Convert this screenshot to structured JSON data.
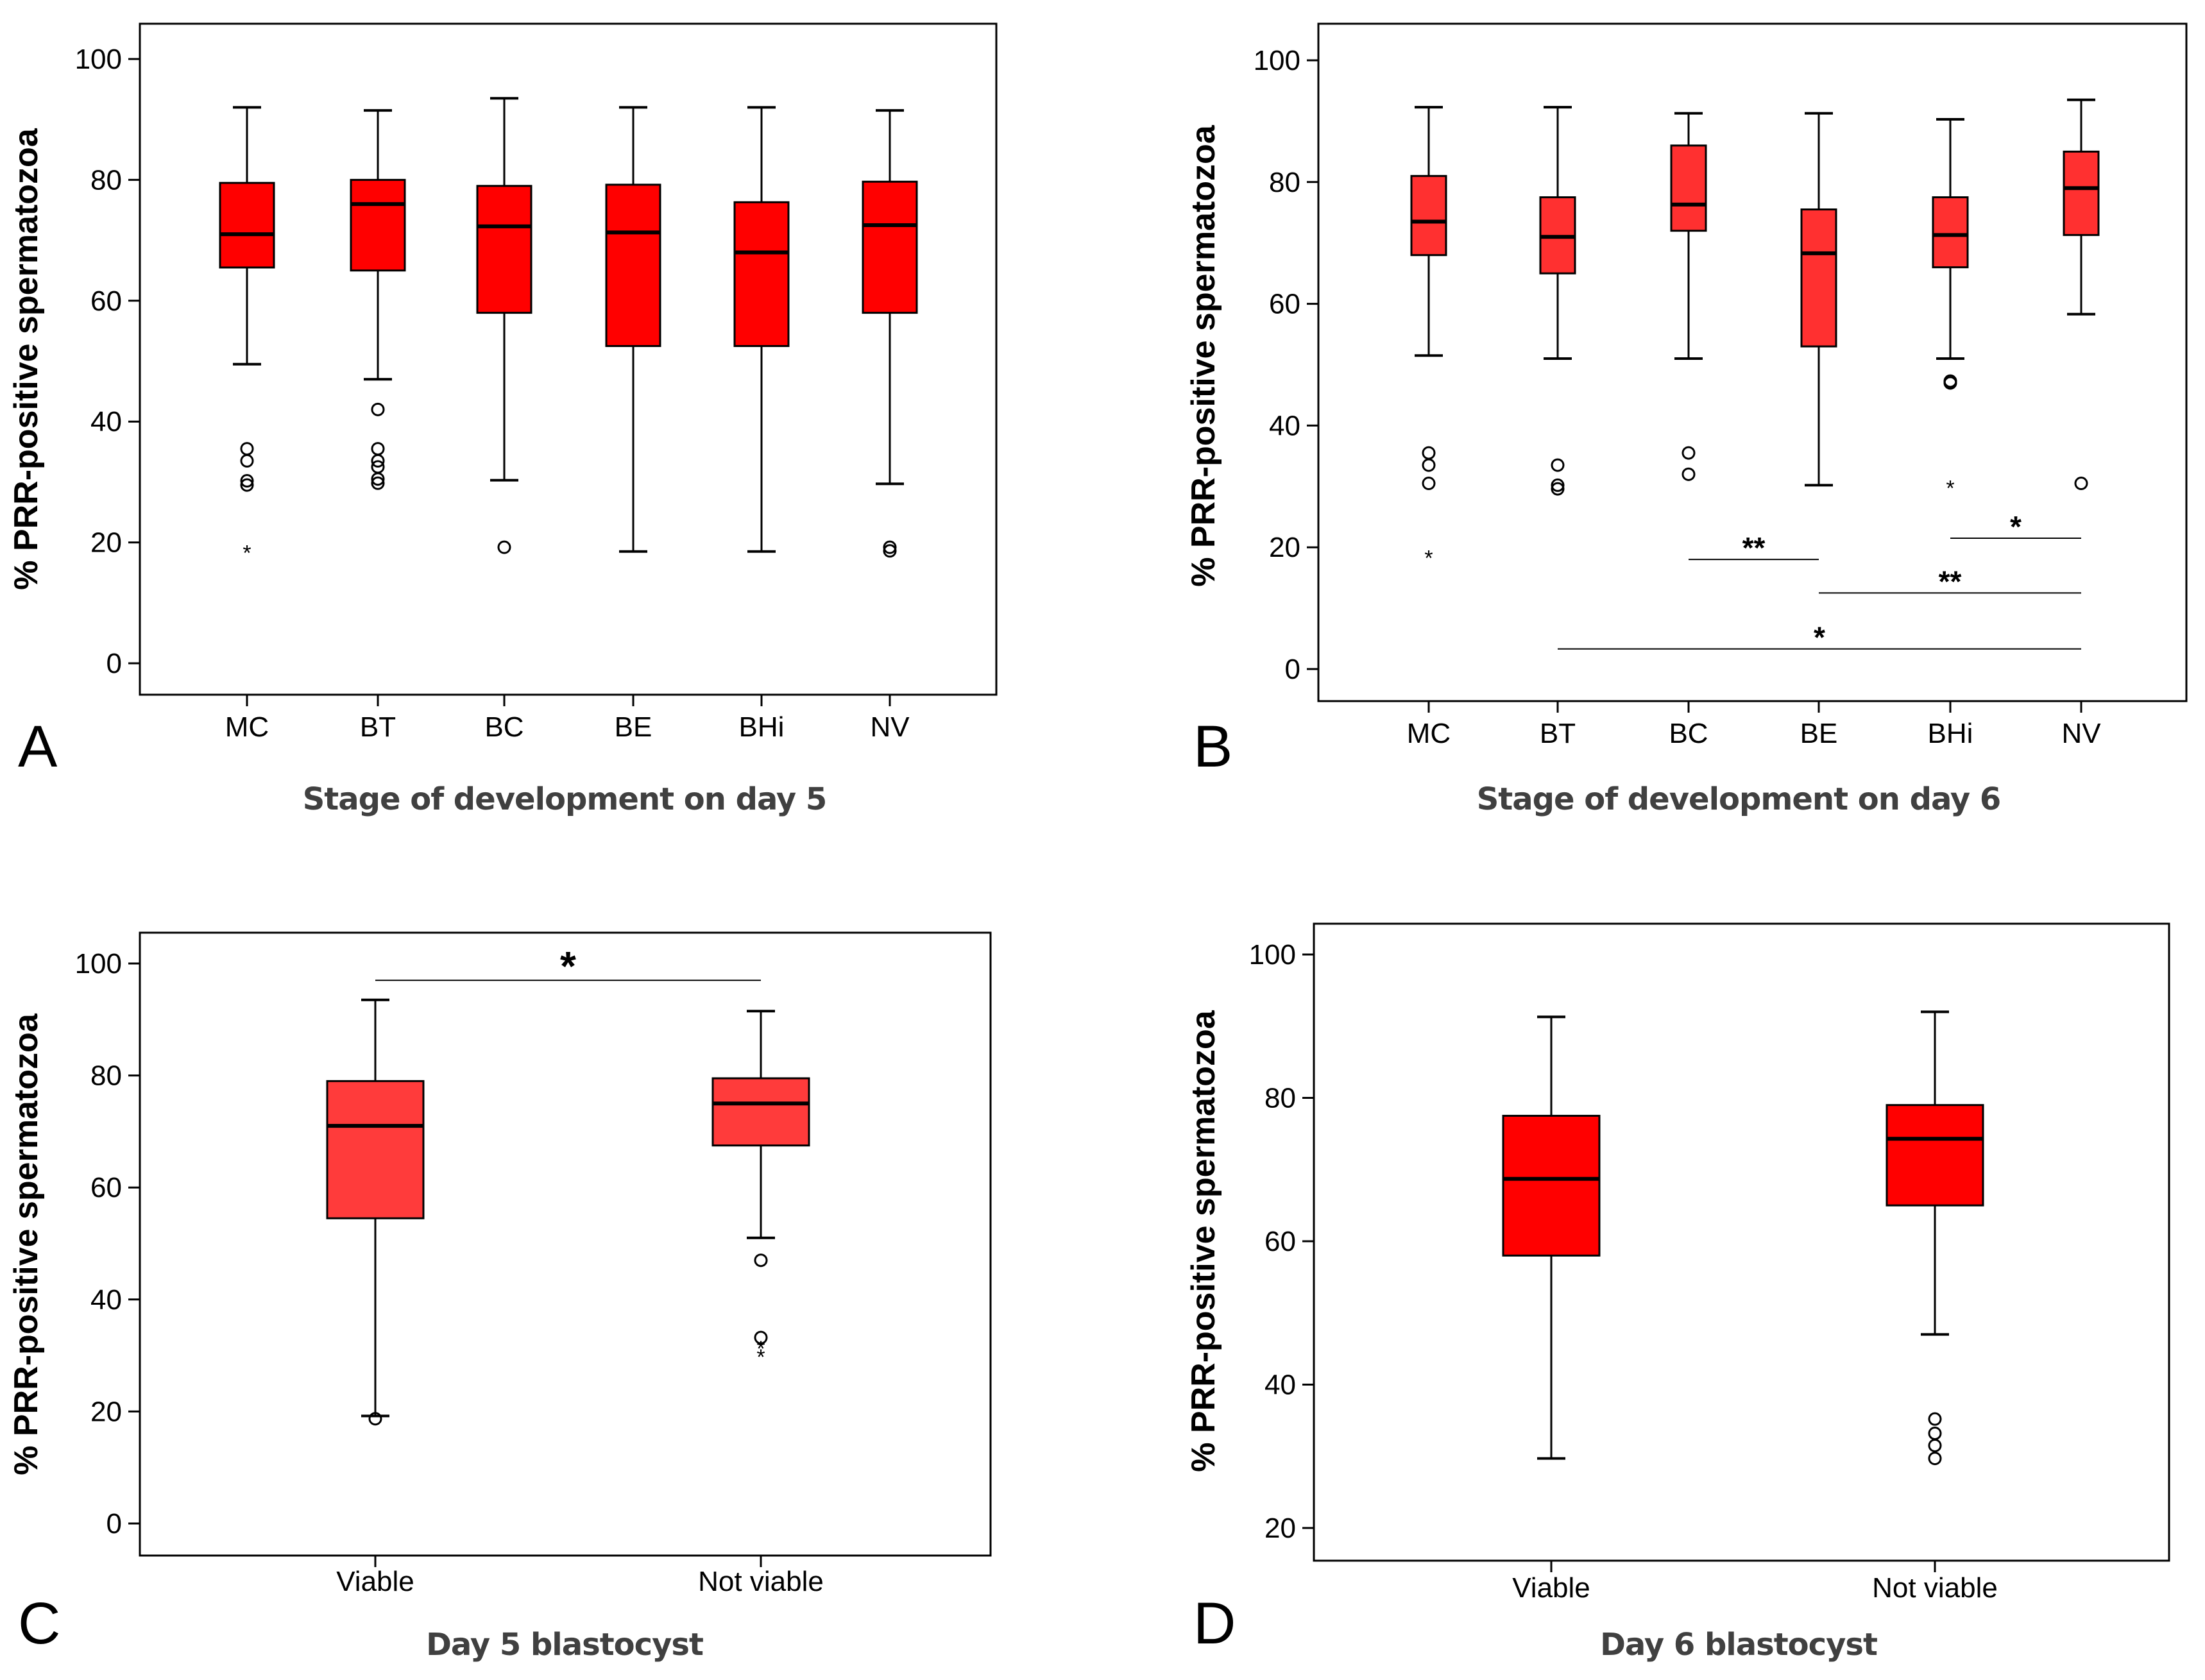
{
  "colors": {
    "box_a": "#ff0000",
    "box_b": "#ff3030",
    "box_c": "#ff3b3b",
    "box_d": "#ff0000",
    "stroke": "#000000"
  },
  "chart_data": [
    {
      "type": "boxplot",
      "panel_letter": "A",
      "xlabel": "Stage of development on day 5",
      "ylabel": "% PRR-positive spermatozoa",
      "ylim": [
        -5,
        105
      ],
      "yticks": [
        0,
        20,
        40,
        60,
        80,
        100
      ],
      "categories": [
        "MC",
        "BT",
        "BC",
        "BE",
        "BHi",
        "NV"
      ],
      "boxes": [
        {
          "min": 49.5,
          "q1": 65.5,
          "median": 71,
          "q3": 79.5,
          "max": 92,
          "outliers": [
            35.5,
            33.5,
            30.2,
            29.5
          ],
          "extremes": [
            18.5
          ]
        },
        {
          "min": 47,
          "q1": 65,
          "median": 76,
          "q3": 80,
          "max": 91.5,
          "outliers": [
            42,
            35.5,
            33.5,
            32.5,
            30.5,
            29.8
          ],
          "extremes": []
        },
        {
          "min": 30.3,
          "q1": 58,
          "median": 72.3,
          "q3": 79,
          "max": 93.5,
          "outliers": [
            19.2
          ],
          "extremes": []
        },
        {
          "min": 18.5,
          "q1": 52.5,
          "median": 71.3,
          "q3": 79.2,
          "max": 92,
          "outliers": [],
          "extremes": []
        },
        {
          "min": 18.5,
          "q1": 52.5,
          "median": 68,
          "q3": 76.3,
          "max": 92,
          "outliers": [],
          "extremes": []
        },
        {
          "min": 29.7,
          "q1": 58,
          "median": 72.5,
          "q3": 79.7,
          "max": 91.5,
          "outliers": [
            19.2,
            18.6
          ],
          "extremes": []
        }
      ],
      "significance": []
    },
    {
      "type": "boxplot",
      "panel_letter": "B",
      "xlabel": "Stage of development on day 6",
      "ylabel": "% PRR-positive spermatozoa",
      "ylim": [
        -5,
        105
      ],
      "yticks": [
        0,
        20,
        40,
        60,
        80,
        100
      ],
      "categories": [
        "MC",
        "BT",
        "BC",
        "BE",
        "BHi",
        "NV"
      ],
      "boxes": [
        {
          "min": 51.5,
          "q1": 68,
          "median": 73.5,
          "q3": 81,
          "max": 92.3,
          "outliers": [
            35.5,
            33.5,
            30.5
          ],
          "extremes": [
            18.5
          ]
        },
        {
          "min": 51,
          "q1": 65,
          "median": 71,
          "q3": 77.5,
          "max": 92.3,
          "outliers": [
            33.5,
            30.2,
            29.6
          ],
          "extremes": []
        },
        {
          "min": 51,
          "q1": 72,
          "median": 76.3,
          "q3": 86,
          "max": 91.3,
          "outliers": [
            35.5,
            32
          ],
          "extremes": []
        },
        {
          "min": 30.2,
          "q1": 53,
          "median": 68.3,
          "q3": 75.5,
          "max": 91.3,
          "outliers": [],
          "extremes": []
        },
        {
          "min": 51,
          "q1": 66,
          "median": 71.3,
          "q3": 77.5,
          "max": 90.3,
          "outliers": [
            47.3,
            47
          ],
          "extremes": [
            30
          ]
        },
        {
          "min": 58.3,
          "q1": 71.3,
          "median": 79,
          "q3": 85,
          "max": 93.5,
          "outliers": [
            30.5
          ],
          "extremes": []
        }
      ],
      "significance": [
        {
          "from": 2,
          "to": 3,
          "y": 18,
          "label": "**"
        },
        {
          "from": 4,
          "to": 5,
          "y": 21.5,
          "label": "*"
        },
        {
          "from": 3,
          "to": 5,
          "y": 12.5,
          "label": "**"
        },
        {
          "from": 1,
          "to": 5,
          "y": 3.3,
          "label": "*"
        }
      ]
    },
    {
      "type": "boxplot",
      "panel_letter": "C",
      "xlabel": "Day 5 blastocyst",
      "ylabel": "% PRR-positive spermatozoa",
      "ylim": [
        -5,
        105
      ],
      "yticks": [
        0,
        20,
        40,
        60,
        80,
        100
      ],
      "categories": [
        "Viable",
        "Not viable"
      ],
      "boxes": [
        {
          "min": 19.2,
          "q1": 54.5,
          "median": 71,
          "q3": 79,
          "max": 93.5,
          "outliers": [
            18.7
          ],
          "extremes": []
        },
        {
          "min": 51,
          "q1": 67.5,
          "median": 75,
          "q3": 79.5,
          "max": 91.5,
          "outliers": [
            47,
            33.2
          ],
          "extremes": [
            31.5,
            30
          ]
        }
      ],
      "significance": [
        {
          "from": 0,
          "to": 1,
          "y": 97,
          "label": "*"
        }
      ]
    },
    {
      "type": "boxplot",
      "panel_letter": "D",
      "xlabel": "Day 6 blastocyst",
      "ylabel": "% PRR-positive spermatozoa",
      "ylim": [
        16,
        104
      ],
      "yticks": [
        20,
        40,
        60,
        80,
        100
      ],
      "categories": [
        "Viable",
        "Not viable"
      ],
      "boxes": [
        {
          "min": 29.7,
          "q1": 58,
          "median": 68.7,
          "q3": 77.5,
          "max": 91.3,
          "outliers": [],
          "extremes": []
        },
        {
          "min": 47,
          "q1": 65,
          "median": 74.3,
          "q3": 79,
          "max": 92,
          "outliers": [
            35.2,
            33.2,
            31.5,
            29.7
          ],
          "extremes": []
        }
      ],
      "significance": []
    }
  ]
}
